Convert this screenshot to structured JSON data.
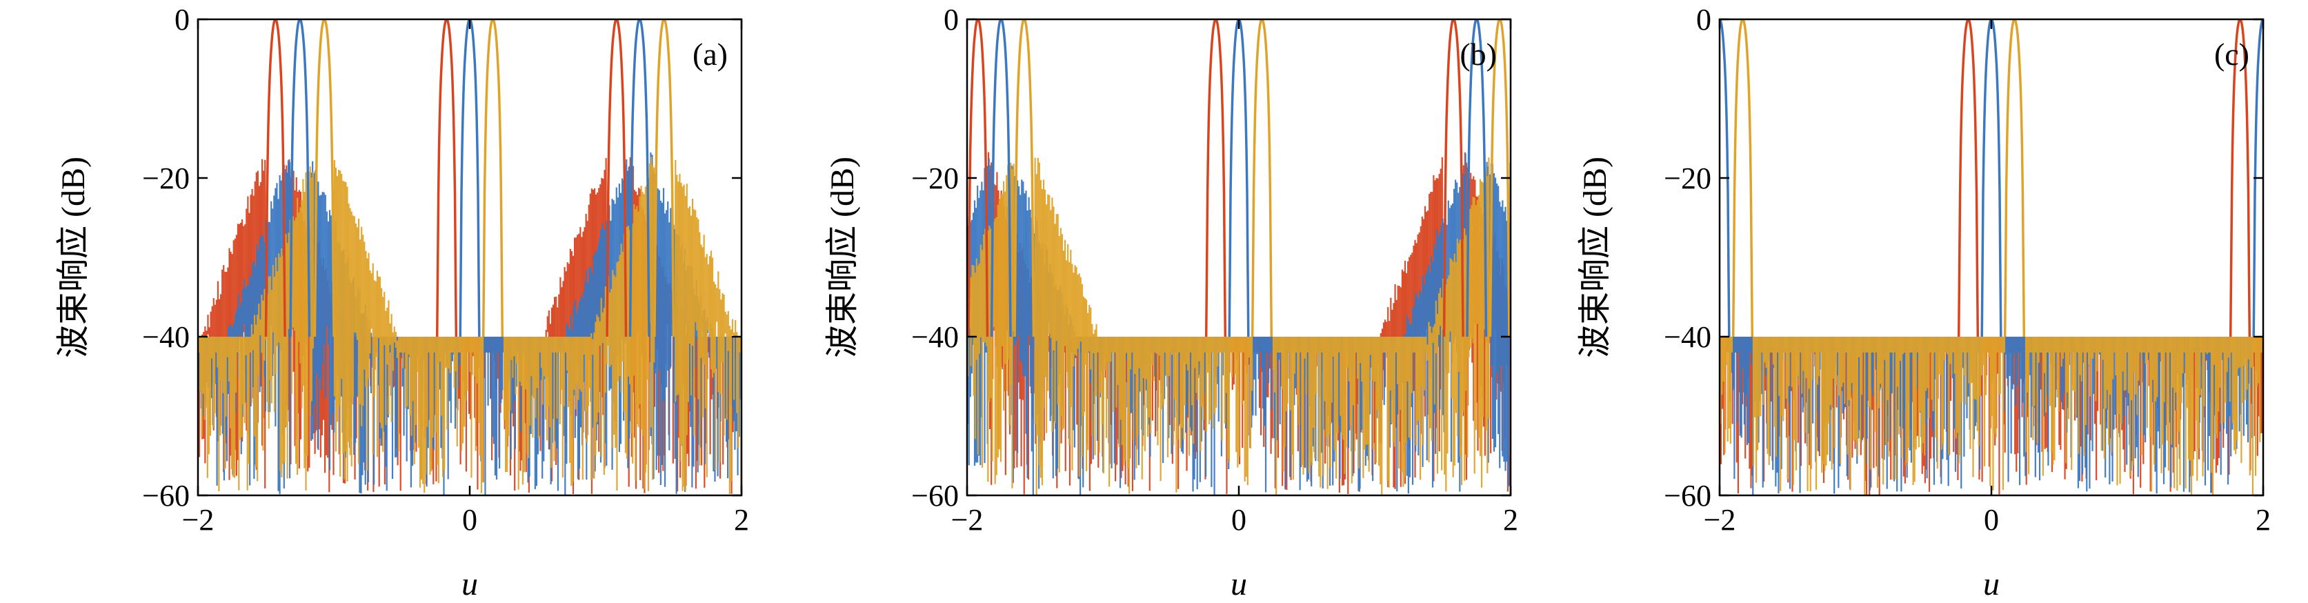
{
  "colors": {
    "red": "#d9441f",
    "blue": "#3b78c2",
    "yellow": "#e0a32a"
  },
  "chart_data": [
    {
      "type": "line",
      "panel_label": "(a)",
      "xlabel": "u",
      "ylabel": "波束响应 (dB)",
      "xlim": [
        -2,
        2
      ],
      "ylim": [
        -60,
        0
      ],
      "xticks": [
        {
          "v": -2,
          "label": "−2"
        },
        {
          "v": 0,
          "label": "0"
        },
        {
          "v": 2,
          "label": "2"
        }
      ],
      "yticks": [
        {
          "v": 0,
          "label": "0"
        },
        {
          "v": -20,
          "label": "−20"
        },
        {
          "v": -40,
          "label": "−40"
        },
        {
          "v": -60,
          "label": "−60"
        }
      ],
      "grid": false,
      "series": [
        {
          "color": "red",
          "peaks": [
            -1.43,
            -0.17,
            1.08
          ]
        },
        {
          "color": "blue",
          "peaks": [
            -1.25,
            0.0,
            1.25
          ]
        },
        {
          "color": "yellow",
          "peaks": [
            -1.07,
            0.17,
            1.43
          ]
        }
      ],
      "sidelobe_floor": -40,
      "rising_sidelobes_near": [
        -1.3,
        1.3
      ]
    },
    {
      "type": "line",
      "panel_label": "(b)",
      "xlabel": "u",
      "ylabel": "波束响应 (dB)",
      "xlim": [
        -2,
        2
      ],
      "ylim": [
        -60,
        0
      ],
      "xticks": [
        {
          "v": -2,
          "label": "−2"
        },
        {
          "v": 0,
          "label": "0"
        },
        {
          "v": 2,
          "label": "2"
        }
      ],
      "yticks": [
        {
          "v": 0,
          "label": "0"
        },
        {
          "v": -20,
          "label": "−20"
        },
        {
          "v": -40,
          "label": "−40"
        },
        {
          "v": -60,
          "label": "−60"
        }
      ],
      "grid": false,
      "series": [
        {
          "color": "red",
          "peaks": [
            -1.92,
            -0.17,
            1.58
          ]
        },
        {
          "color": "blue",
          "peaks": [
            -1.75,
            0.0,
            1.75
          ]
        },
        {
          "color": "yellow",
          "peaks": [
            -1.58,
            0.17,
            1.92
          ]
        }
      ],
      "sidelobe_floor": -40,
      "rising_sidelobes_near": [
        -1.8,
        1.8
      ]
    },
    {
      "type": "line",
      "panel_label": "(c)",
      "xlabel": "u",
      "ylabel": "波束响应 (dB)",
      "xlim": [
        -2,
        2
      ],
      "ylim": [
        -60,
        0
      ],
      "xticks": [
        {
          "v": -2,
          "label": "−2"
        },
        {
          "v": 0,
          "label": "0"
        },
        {
          "v": 2,
          "label": "2"
        }
      ],
      "yticks": [
        {
          "v": 0,
          "label": "0"
        },
        {
          "v": -20,
          "label": "−20"
        },
        {
          "v": -40,
          "label": "−40"
        },
        {
          "v": -60,
          "label": "−60"
        }
      ],
      "grid": false,
      "series": [
        {
          "color": "red",
          "peaks": [
            -0.17,
            1.83
          ]
        },
        {
          "color": "blue",
          "peaks": [
            -2.0,
            0.0,
            2.0
          ]
        },
        {
          "color": "yellow",
          "peaks": [
            -1.83,
            0.17
          ]
        }
      ],
      "sidelobe_floor": -40,
      "rising_sidelobes_near": []
    }
  ]
}
